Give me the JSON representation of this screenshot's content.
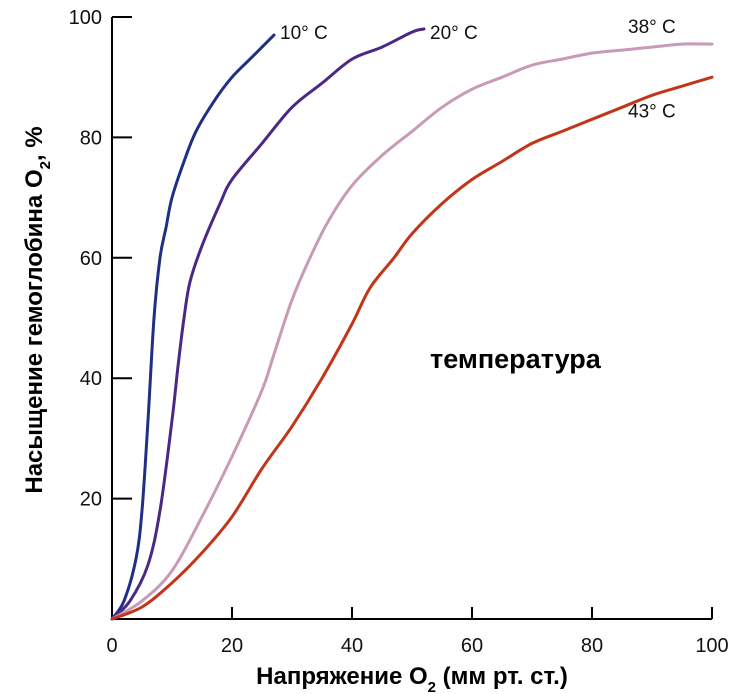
{
  "chart_data": {
    "type": "line",
    "xlabel": {
      "main": "Напряжение O",
      "sub": "2",
      "tail": " (мм рт. ст.)"
    },
    "ylabel": {
      "main": "Насыщение гемоглобина O",
      "sub": "2",
      "tail": ", %"
    },
    "annotation": "температура",
    "xlim": [
      0,
      100
    ],
    "ylim": [
      0,
      100
    ],
    "x_ticks": [
      0,
      20,
      40,
      60,
      80,
      100
    ],
    "y_ticks": [
      20,
      40,
      60,
      80,
      100
    ],
    "x_tick_labels": [
      "0",
      "20",
      "40",
      "60",
      "80",
      "100"
    ],
    "y_tick_labels": [
      "20",
      "40",
      "60",
      "80",
      "100"
    ],
    "grid": false,
    "series": [
      {
        "name": "10° C",
        "color": "#1f2f86",
        "points": [
          [
            0,
            0
          ],
          [
            2,
            3
          ],
          [
            4,
            10
          ],
          [
            5,
            18
          ],
          [
            6,
            33
          ],
          [
            7,
            50
          ],
          [
            8,
            60
          ],
          [
            9,
            65
          ],
          [
            10,
            70
          ],
          [
            12,
            76
          ],
          [
            14,
            81
          ],
          [
            17,
            86
          ],
          [
            20,
            90
          ],
          [
            23,
            93
          ],
          [
            26,
            96
          ],
          [
            27,
            97
          ]
        ]
      },
      {
        "name": "20° C",
        "color": "#4b2886",
        "points": [
          [
            0,
            0
          ],
          [
            3,
            3
          ],
          [
            6,
            9
          ],
          [
            8,
            18
          ],
          [
            10,
            33
          ],
          [
            11,
            42
          ],
          [
            12,
            50
          ],
          [
            13,
            56
          ],
          [
            15,
            62
          ],
          [
            18,
            69
          ],
          [
            20,
            73
          ],
          [
            25,
            79
          ],
          [
            30,
            85
          ],
          [
            35,
            89
          ],
          [
            40,
            93
          ],
          [
            45,
            95
          ],
          [
            50,
            97.5
          ],
          [
            52,
            98
          ]
        ]
      },
      {
        "name": "38° C",
        "color": "#c89ab6",
        "points": [
          [
            0,
            0
          ],
          [
            5,
            3
          ],
          [
            10,
            8
          ],
          [
            15,
            17
          ],
          [
            20,
            27
          ],
          [
            25,
            38
          ],
          [
            27,
            44
          ],
          [
            30,
            53
          ],
          [
            33,
            60
          ],
          [
            36,
            66
          ],
          [
            40,
            72
          ],
          [
            45,
            77
          ],
          [
            50,
            81
          ],
          [
            55,
            85
          ],
          [
            60,
            88
          ],
          [
            65,
            90
          ],
          [
            70,
            92
          ],
          [
            75,
            93
          ],
          [
            80,
            94
          ],
          [
            85,
            94.5
          ],
          [
            90,
            95
          ],
          [
            95,
            95.5
          ],
          [
            100,
            95.5
          ]
        ]
      },
      {
        "name": "43° C",
        "color": "#c23519",
        "points": [
          [
            0,
            0
          ],
          [
            5,
            2
          ],
          [
            10,
            6
          ],
          [
            15,
            11
          ],
          [
            20,
            17
          ],
          [
            25,
            25
          ],
          [
            30,
            32
          ],
          [
            35,
            40
          ],
          [
            40,
            49
          ],
          [
            43,
            55
          ],
          [
            47,
            60
          ],
          [
            50,
            64
          ],
          [
            55,
            69
          ],
          [
            60,
            73
          ],
          [
            65,
            76
          ],
          [
            70,
            79
          ],
          [
            75,
            81
          ],
          [
            80,
            83
          ],
          [
            85,
            85
          ],
          [
            90,
            87
          ],
          [
            95,
            88.5
          ],
          [
            100,
            90
          ]
        ]
      }
    ],
    "series_labels": [
      {
        "name": "10° C",
        "at": [
          28,
          97.5
        ]
      },
      {
        "name": "20° C",
        "at": [
          53,
          97.5
        ]
      },
      {
        "name": "38° C",
        "at": [
          86,
          98.5
        ]
      },
      {
        "name": "43° C",
        "at": [
          86,
          84.5
        ]
      }
    ]
  }
}
